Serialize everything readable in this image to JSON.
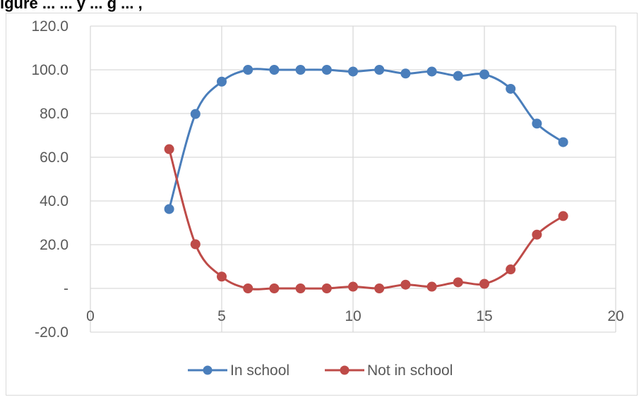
{
  "title": "igure ... ... y ... g ... ,",
  "chart_data": {
    "type": "line",
    "title": "",
    "xlabel": "",
    "ylabel": "",
    "xlim": [
      0,
      20
    ],
    "ylim": [
      -20,
      120
    ],
    "x_ticks": [
      0,
      5,
      10,
      15,
      20
    ],
    "y_ticks": [
      -20,
      0,
      20,
      40,
      60,
      80,
      100,
      120
    ],
    "y_tick_labels": [
      "-20.0",
      "-",
      "20.0",
      "40.0",
      "60.0",
      "80.0",
      "100.0",
      "120.0"
    ],
    "x_tick_labels": [
      "0",
      "5",
      "10",
      "15",
      "20"
    ],
    "grid": "on",
    "legend_position": "bottom",
    "x": [
      3,
      4,
      5,
      6,
      7,
      8,
      9,
      10,
      11,
      12,
      13,
      14,
      15,
      16,
      17,
      18
    ],
    "series": [
      {
        "name": "In school",
        "color": "#4a7ebb",
        "values": [
          36.3,
          79.8,
          94.6,
          100.0,
          100.0,
          100.0,
          100.0,
          99.2,
          100.0,
          98.3,
          99.2,
          97.2,
          97.9,
          91.3,
          75.4,
          66.9
        ]
      },
      {
        "name": "Not in school",
        "color": "#be4b48",
        "values": [
          63.7,
          20.2,
          5.4,
          0.0,
          0.0,
          0.0,
          0.0,
          0.8,
          0.0,
          1.7,
          0.8,
          2.8,
          2.1,
          8.7,
          24.6,
          33.1
        ]
      }
    ]
  }
}
